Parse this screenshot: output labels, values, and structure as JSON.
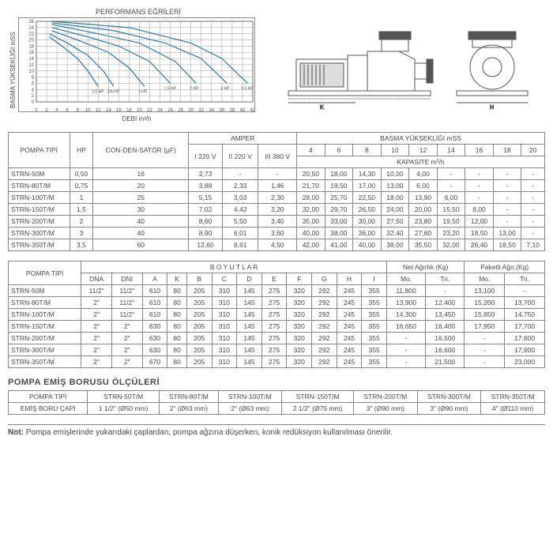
{
  "chart": {
    "title": "PERFORMANS EĞRİLERİ",
    "ylabel": "BASMA YÜKSEKLİĞİ mSS",
    "xlabel": "DEBİ m³/h",
    "xlim": [
      0,
      42
    ],
    "xtick_step": 2,
    "ylim": [
      0,
      26
    ],
    "ytick_step": 2,
    "grid_color": "#888888",
    "curve_color": "#2a7ab0",
    "curve_labels": [
      "1/2 HP",
      "3/4 HP",
      "1 HP",
      "1,5 HP",
      "2 HP",
      "3 HP",
      "3,5 HP"
    ],
    "curves": [
      [
        [
          2.5,
          21
        ],
        [
          5,
          18
        ],
        [
          8,
          14
        ],
        [
          10,
          10
        ],
        [
          12,
          5
        ]
      ],
      [
        [
          2.5,
          22
        ],
        [
          6,
          19
        ],
        [
          10,
          15
        ],
        [
          13,
          10
        ],
        [
          15,
          5
        ]
      ],
      [
        [
          3,
          23
        ],
        [
          8,
          20
        ],
        [
          14,
          16
        ],
        [
          18,
          11
        ],
        [
          21,
          5
        ]
      ],
      [
        [
          3,
          24
        ],
        [
          10,
          21
        ],
        [
          16,
          18
        ],
        [
          22,
          13
        ],
        [
          26,
          6
        ]
      ],
      [
        [
          3,
          25
        ],
        [
          12,
          22
        ],
        [
          20,
          19
        ],
        [
          27,
          13
        ],
        [
          31,
          6
        ]
      ],
      [
        [
          3,
          25.5
        ],
        [
          15,
          23
        ],
        [
          25,
          19
        ],
        [
          32,
          14
        ],
        [
          37,
          6
        ]
      ],
      [
        [
          3,
          26
        ],
        [
          18,
          24
        ],
        [
          30,
          19
        ],
        [
          36,
          14
        ],
        [
          41,
          6
        ]
      ]
    ]
  },
  "table1": {
    "hdr_pompa": "POMPA TİPİ",
    "hdr_hp": "HP",
    "hdr_con": "CON-DEN-SATÖR (μF)",
    "hdr_amper": "AMPER",
    "hdr_a1": "I 220 V",
    "hdr_a2": "II 220 V",
    "hdr_a3": "III 380 V",
    "hdr_basma": "BASMA YÜKSEKLİĞİ mSS",
    "hdr_kapasite": "KAPASİTE m³/h",
    "heads": [
      "4",
      "6",
      "8",
      "10",
      "12",
      "14",
      "16",
      "18",
      "20"
    ],
    "rows": [
      {
        "m": "STRN-50M",
        "hp": "0,50",
        "c": "16",
        "a": [
          "2,73",
          "-",
          "-"
        ],
        "v": [
          "20,50",
          "18,00",
          "14,30",
          "10,00",
          "4,00",
          "-",
          "-",
          "-",
          "-"
        ]
      },
      {
        "m": "STRN-80T/M",
        "hp": "0,75",
        "c": "20",
        "a": [
          "3,88",
          "2,33",
          "1,46"
        ],
        "v": [
          "21,70",
          "19,50",
          "17,00",
          "13,00",
          "6,00",
          "-",
          "-",
          "-",
          "-"
        ]
      },
      {
        "m": "STRN-100T/M",
        "hp": "1",
        "c": "25",
        "a": [
          "5,15",
          "3,03",
          "2,30"
        ],
        "v": [
          "28,00",
          "25,70",
          "22,50",
          "18,00",
          "13,90",
          "6,00",
          "-",
          "-",
          "-"
        ]
      },
      {
        "m": "STRN-150T/M",
        "hp": "1,5",
        "c": "30",
        "a": [
          "7,02",
          "4,42",
          "3,20"
        ],
        "v": [
          "32,00",
          "29,70",
          "26,50",
          "24,00",
          "20,00",
          "15,50",
          "8,00",
          "-",
          "-"
        ]
      },
      {
        "m": "STRN-200T/M",
        "hp": "2",
        "c": "40",
        "a": [
          "8,60",
          "5,50",
          "3,40"
        ],
        "v": [
          "35,00",
          "33,00",
          "30,00",
          "27,50",
          "23,80",
          "19,50",
          "12,00",
          "-",
          "-"
        ]
      },
      {
        "m": "STRN-300T/M",
        "hp": "3",
        "c": "40",
        "a": [
          "8,90",
          "6,01",
          "3,60"
        ],
        "v": [
          "40,00",
          "38,00",
          "36,00",
          "32,40",
          "27,60",
          "23,20",
          "18,50",
          "13,00",
          "-"
        ]
      },
      {
        "m": "STRN-350T/M",
        "hp": "3,5",
        "c": "60",
        "a": [
          "12,60",
          "8,61",
          "4,50"
        ],
        "v": [
          "42,00",
          "41,00",
          "40,00",
          "38,00",
          "35,50",
          "32,00",
          "26,40",
          "18,50",
          "7,10"
        ]
      }
    ]
  },
  "table2": {
    "hdr_pompa": "POMPA TİPİ",
    "hdr_boyutlar": "B O Y U T L A R",
    "hdr_net": "Net Ağırlık (Kg)",
    "hdr_paket": "Paketli Ağır.(Kg)",
    "cols": [
      "DNA",
      "DNI",
      "A",
      "K",
      "B",
      "C",
      "D",
      "E",
      "F",
      "G",
      "H",
      "I"
    ],
    "sub": [
      "Mo.",
      "Tri.",
      "Mo.",
      "Tri."
    ],
    "rows": [
      {
        "m": "STRN-50M",
        "d": [
          "11/2\"",
          "11/2\"",
          "610",
          "80",
          "205",
          "310",
          "145",
          "275",
          "320",
          "292",
          "245",
          "355"
        ],
        "w": [
          "11,800",
          "-",
          "13,100",
          "-"
        ]
      },
      {
        "m": "STRN-80T/M",
        "d": [
          "2\"",
          "11/2\"",
          "610",
          "80",
          "205",
          "310",
          "145",
          "275",
          "320",
          "292",
          "245",
          "355"
        ],
        "w": [
          "13,900",
          "12,400",
          "15,200",
          "13,700"
        ]
      },
      {
        "m": "STRN-100T/M",
        "d": [
          "2\"",
          "11/2\"",
          "610",
          "80",
          "205",
          "310",
          "145",
          "275",
          "320",
          "292",
          "245",
          "355"
        ],
        "w": [
          "14,300",
          "13,450",
          "15,650",
          "14,750"
        ]
      },
      {
        "m": "STRN-150T/M",
        "d": [
          "2\"",
          "2\"",
          "630",
          "80",
          "205",
          "310",
          "145",
          "275",
          "320",
          "292",
          "245",
          "355"
        ],
        "w": [
          "16,650",
          "16,400",
          "17,950",
          "17,700"
        ]
      },
      {
        "m": "STRN-200T/M",
        "d": [
          "2\"",
          "2\"",
          "630",
          "80",
          "205",
          "310",
          "145",
          "275",
          "320",
          "292",
          "245",
          "355"
        ],
        "w": [
          "-",
          "16,500",
          "-",
          "17,800"
        ]
      },
      {
        "m": "STRN-300T/M",
        "d": [
          "2\"",
          "2\"",
          "630",
          "80",
          "205",
          "310",
          "145",
          "275",
          "320",
          "292",
          "245",
          "355"
        ],
        "w": [
          "-",
          "16,600",
          "-",
          "17,900"
        ]
      },
      {
        "m": "STRN-350T/M",
        "d": [
          "2\"",
          "2\"",
          "670",
          "80",
          "205",
          "310",
          "145",
          "275",
          "320",
          "292",
          "245",
          "355"
        ],
        "w": [
          "-",
          "21,500",
          "-",
          "23,000"
        ]
      }
    ]
  },
  "section3_title": "POMPA EMİŞ BORUSU ÖLÇÜLERİ",
  "table3": {
    "hdr_pompa": "POMPA TİPİ",
    "hdr_emis": "EMİŞ BORU ÇAPI",
    "cols": [
      "STRN-50T/M",
      "STRN-80T/M",
      "STRN-100T/M",
      "STRN-150T/M",
      "STRN-200T/M",
      "STRN-300T/M",
      "STRN-350T/M"
    ],
    "vals": [
      "1 1/2\" (Ø50 mm)",
      "2\" (Ø63 mm)",
      "2\" (Ø63 mm)",
      "2 1/2\" (Ø75 mm)",
      "3\" (Ø90 mm)",
      "3\" (Ø90 mm)",
      "4\" (Ø110 mm)"
    ]
  },
  "note_label": "Not:",
  "note_text": "Pompa emişlerinde yukarıdaki çaplardan, pompa ağzına düşerken, konik redüksiyon kullanılması önerilir."
}
